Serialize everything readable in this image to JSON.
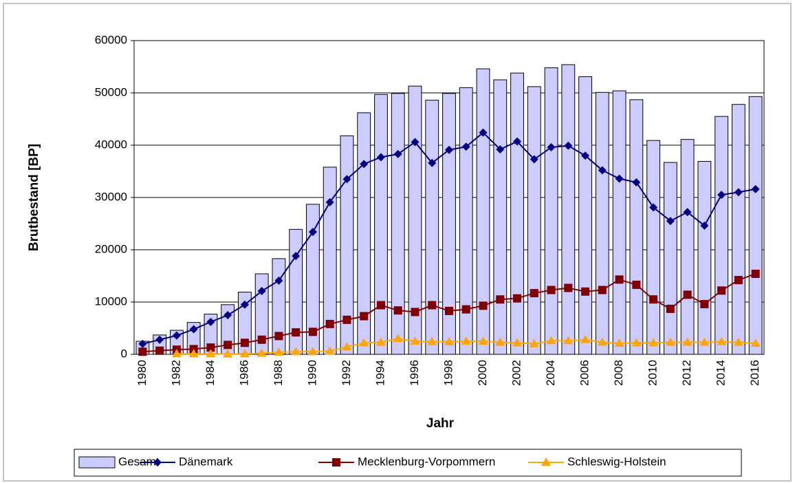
{
  "chart_data": {
    "type": "combo",
    "x_label": "Jahr",
    "y_label": "Brutbestand [BP]",
    "categories": [
      "1980",
      null,
      "1982",
      null,
      "1984",
      null,
      "1986",
      null,
      "1988",
      null,
      "1990",
      null,
      "1992",
      null,
      "1994",
      null,
      "1996",
      null,
      "1998",
      null,
      "2000",
      null,
      "2002",
      null,
      "2004",
      null,
      "2006",
      null,
      "2008",
      null,
      "2010",
      null,
      "2012",
      null,
      "2014",
      null,
      "2016"
    ],
    "series": [
      {
        "name": "Gesamt",
        "type": "bar",
        "color": "#ccccff",
        "values": [
          2500,
          3700,
          4600,
          6100,
          7700,
          9500,
          11900,
          15400,
          18300,
          23900,
          28700,
          35800,
          41800,
          46200,
          49700,
          49900,
          51300,
          48600,
          49900,
          51000,
          54600,
          52500,
          53800,
          51200,
          54800,
          55400,
          53100,
          50100,
          50400,
          48700,
          40900,
          36700,
          41100,
          36900,
          45500,
          47800,
          49300
        ]
      },
      {
        "name": "Dänemark",
        "type": "line",
        "marker": "diamond",
        "color": "#000080",
        "values": [
          2000,
          2800,
          3600,
          4800,
          6200,
          7500,
          9500,
          12100,
          14100,
          18800,
          23400,
          29100,
          33500,
          36400,
          37700,
          38300,
          40600,
          36600,
          39100,
          39700,
          42400,
          39200,
          40700,
          37300,
          39600,
          39900,
          38000,
          35200,
          33600,
          32900,
          28100,
          25500,
          27200,
          24600,
          30500,
          31000,
          31600
        ]
      },
      {
        "name": "Mecklenburg-Vorpommern",
        "type": "line",
        "marker": "square",
        "color": "#800000",
        "values": [
          500,
          700,
          900,
          1000,
          1300,
          1800,
          2200,
          2800,
          3500,
          4200,
          4300,
          5800,
          6600,
          7300,
          9400,
          8400,
          8100,
          9400,
          8300,
          8600,
          9300,
          10500,
          10700,
          11700,
          12300,
          12700,
          12000,
          12300,
          14300,
          13300,
          10500,
          8700,
          11400,
          9600,
          12200,
          14200,
          15400
        ]
      },
      {
        "name": "Schleswig-Holstein",
        "type": "line",
        "marker": "triangle",
        "color": "#ffa500",
        "values": [
          null,
          null,
          100,
          100,
          100,
          50,
          100,
          200,
          400,
          500,
          500,
          600,
          1400,
          2200,
          2300,
          3000,
          2500,
          2400,
          2400,
          2500,
          2500,
          2300,
          2200,
          2000,
          2600,
          2600,
          2800,
          2300,
          2100,
          2200,
          2200,
          2300,
          2300,
          2300,
          2400,
          2300,
          2100
        ]
      }
    ],
    "ylim": [
      0,
      60000
    ],
    "yticks": [
      0,
      10000,
      20000,
      30000,
      40000,
      50000,
      60000
    ],
    "grid": true,
    "legend": "bottom"
  }
}
